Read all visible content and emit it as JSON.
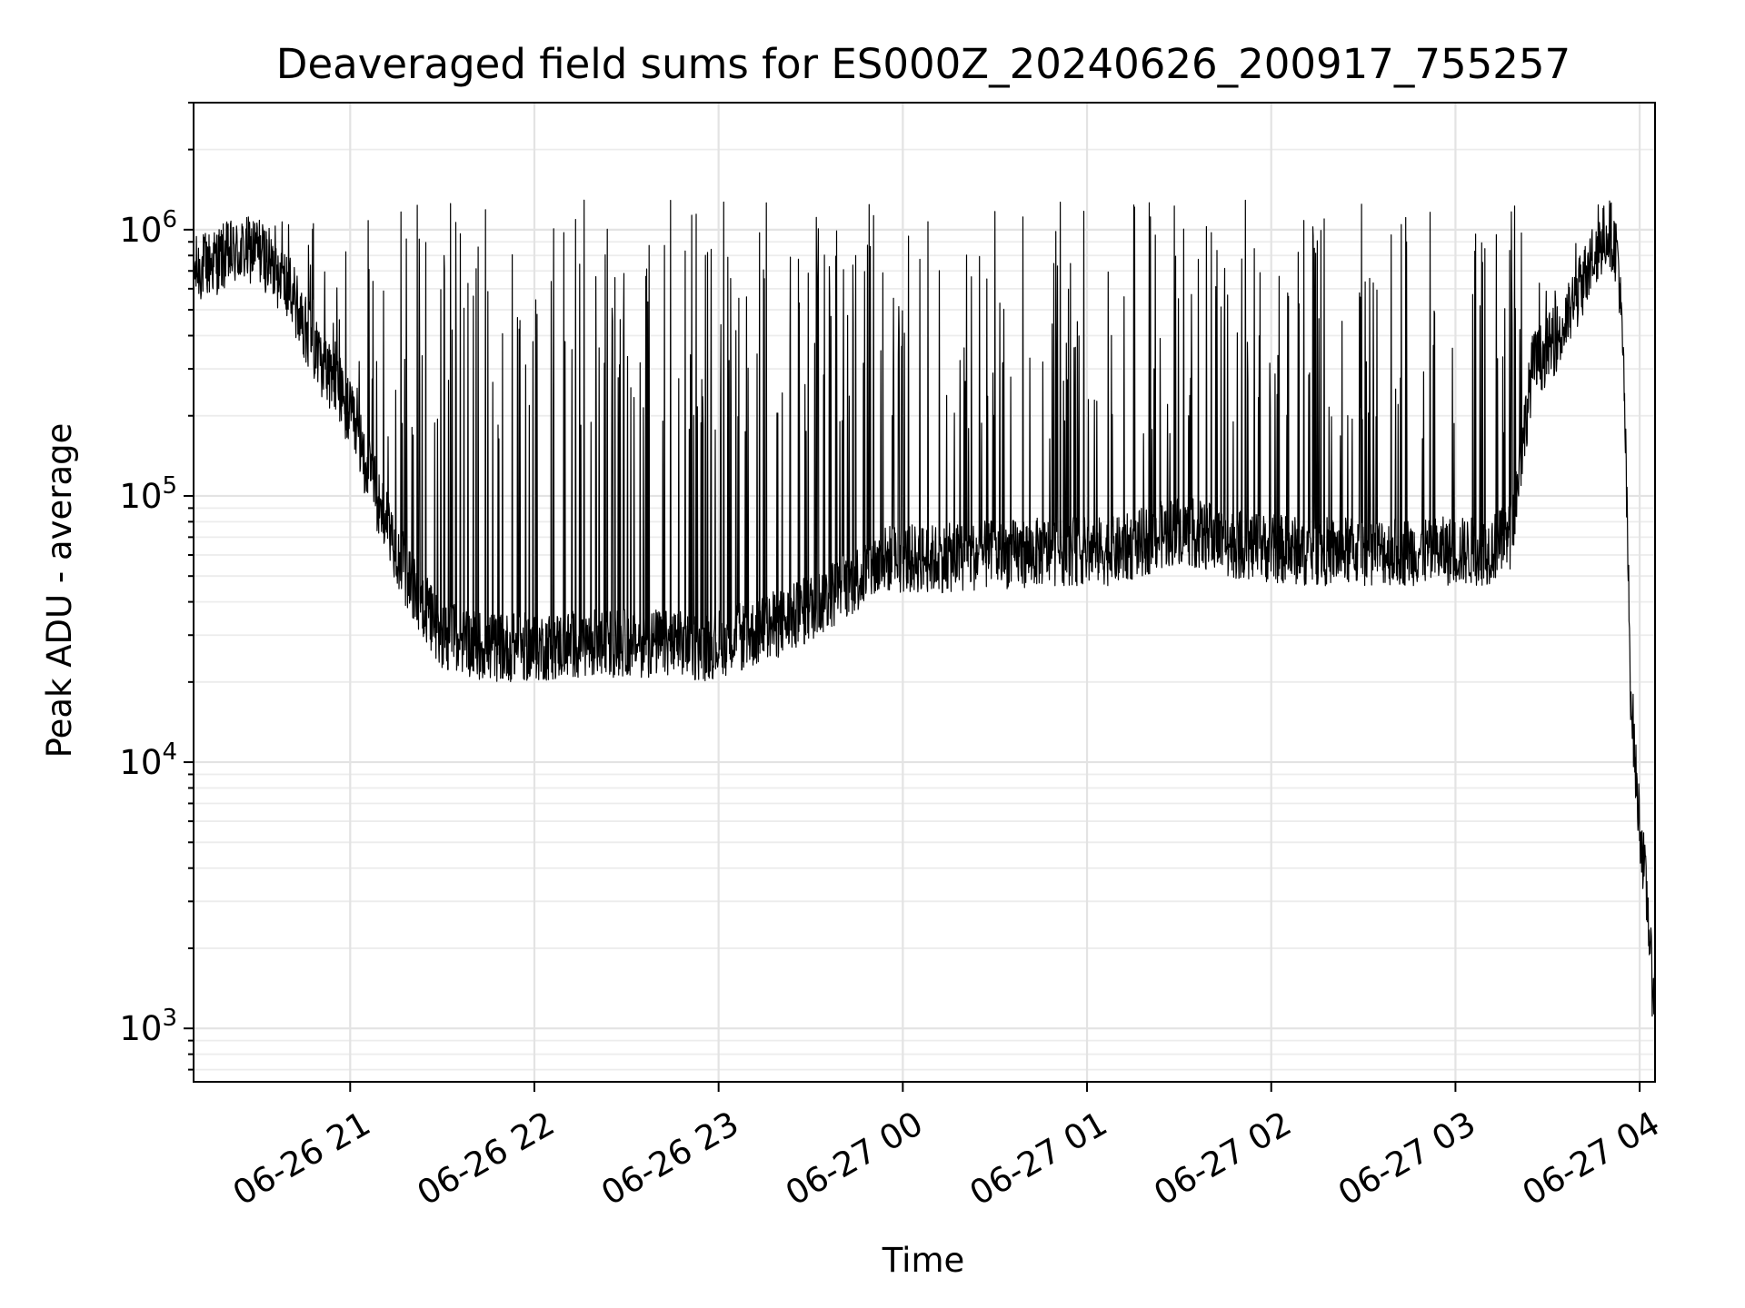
{
  "chart_data": {
    "type": "line",
    "title": "Deaveraged field sums for ES000Z_20240626_200917_755257",
    "xlabel": "Time",
    "ylabel": "Peak ADU - average",
    "yscale": "log",
    "ylim": [
      630,
      3000000
    ],
    "xlim": [
      "2024-06-26 20:09",
      "2024-06-27 04:05"
    ],
    "grid": true,
    "legend": "none",
    "x_ticks": [
      {
        "value": "2024-06-26 21:00",
        "label": "06-26 21"
      },
      {
        "value": "2024-06-26 22:00",
        "label": "06-26 22"
      },
      {
        "value": "2024-06-26 23:00",
        "label": "06-26 23"
      },
      {
        "value": "2024-06-27 00:00",
        "label": "06-27 00"
      },
      {
        "value": "2024-06-27 01:00",
        "label": "06-27 01"
      },
      {
        "value": "2024-06-27 02:00",
        "label": "06-27 02"
      },
      {
        "value": "2024-06-27 03:00",
        "label": "06-27 03"
      },
      {
        "value": "2024-06-27 04:00",
        "label": "06-27 04"
      }
    ],
    "y_ticks": [
      {
        "value": 1000,
        "base": "10",
        "exp": "3"
      },
      {
        "value": 10000,
        "base": "10",
        "exp": "4"
      },
      {
        "value": 100000,
        "base": "10",
        "exp": "5"
      },
      {
        "value": 1000000,
        "base": "10",
        "exp": "6"
      }
    ],
    "series": [
      {
        "color": "#000000",
        "baseline": {
          "x": [
            "2024-06-26 20:09",
            "2024-06-26 20:20",
            "2024-06-26 20:30",
            "2024-06-26 20:40",
            "2024-06-26 20:50",
            "2024-06-26 21:00",
            "2024-06-26 21:10",
            "2024-06-26 21:20",
            "2024-06-26 21:30",
            "2024-06-26 21:45",
            "2024-06-26 22:00",
            "2024-06-26 22:20",
            "2024-06-26 22:40",
            "2024-06-26 22:55",
            "2024-06-26 23:10",
            "2024-06-26 23:25",
            "2024-06-26 23:40",
            "2024-06-26 23:55",
            "2024-06-27 00:10",
            "2024-06-27 00:30",
            "2024-06-27 00:50",
            "2024-06-27 01:10",
            "2024-06-27 01:30",
            "2024-06-27 01:50",
            "2024-06-27 02:10",
            "2024-06-27 02:30",
            "2024-06-27 02:50",
            "2024-06-27 03:10",
            "2024-06-27 03:18",
            "2024-06-27 03:25",
            "2024-06-27 03:35",
            "2024-06-27 03:45",
            "2024-06-27 03:50",
            "2024-06-27 03:53",
            "2024-06-27 03:55",
            "2024-06-27 03:57",
            "2024-06-27 03:59",
            "2024-06-27 04:01",
            "2024-06-27 04:03",
            "2024-06-27 04:04"
          ],
          "y": [
            700000,
            800000,
            850000,
            600000,
            330000,
            200000,
            90000,
            45000,
            30000,
            27000,
            27000,
            28000,
            28000,
            27000,
            30000,
            35000,
            45000,
            58000,
            58000,
            60000,
            62000,
            62000,
            75000,
            65000,
            62000,
            62000,
            62000,
            62000,
            70000,
            300000,
            420000,
            800000,
            1000000,
            800000,
            250000,
            20000,
            8000,
            4500,
            2500,
            1500
          ]
        },
        "peak_level": 1300000,
        "spike_count": 450
      }
    ]
  }
}
